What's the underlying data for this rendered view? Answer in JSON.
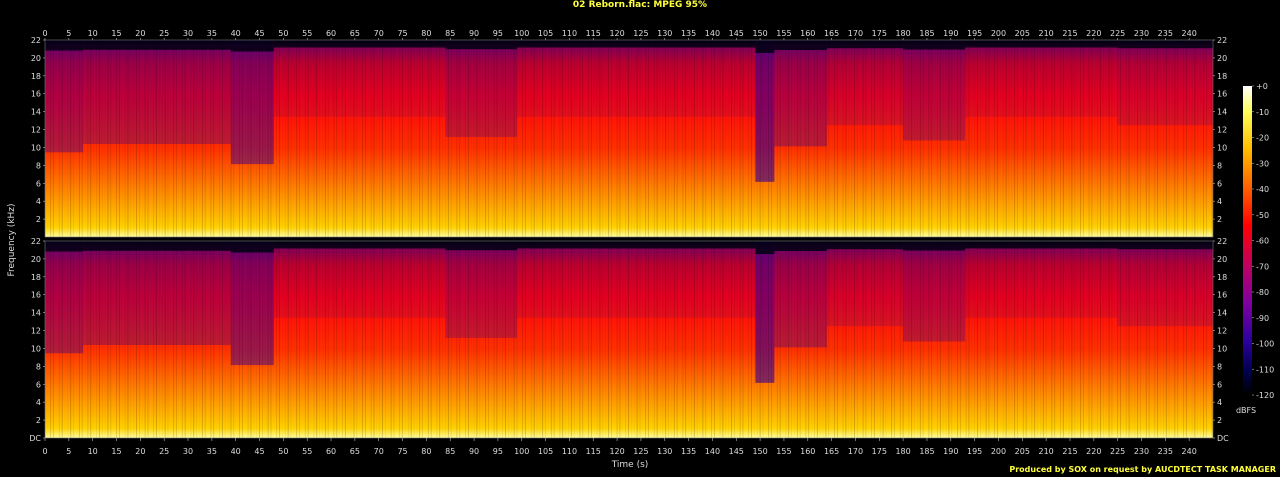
{
  "title": "02 Reborn.flac: MPEG 95%",
  "footer": "Produced by SOX on request by AUCDTECT TASK MANAGER",
  "chart_data": {
    "type": "heatmap",
    "title": "02 Reborn.flac: MPEG 95%",
    "xlabel": "Time (s)",
    "ylabel": "Frequency (kHz)",
    "xlim": [
      0,
      245
    ],
    "ylim": [
      0,
      22
    ],
    "x_ticks": [
      0,
      5,
      10,
      15,
      20,
      25,
      30,
      35,
      40,
      45,
      50,
      55,
      60,
      65,
      70,
      75,
      80,
      85,
      90,
      95,
      100,
      105,
      110,
      115,
      120,
      125,
      130,
      135,
      140,
      145,
      150,
      155,
      160,
      165,
      170,
      175,
      180,
      185,
      190,
      195,
      200,
      205,
      210,
      215,
      220,
      225,
      230,
      235,
      240
    ],
    "y_tick_labels": [
      "DC",
      "2",
      "4",
      "6",
      "8",
      "10",
      "12",
      "14",
      "16",
      "18",
      "20",
      "22"
    ],
    "channels": 2,
    "colorbar": {
      "label": "dBFS",
      "ticks": [
        "+0",
        "-10",
        "-20",
        "-30",
        "-40",
        "-50",
        "-60",
        "-70",
        "-80",
        "-90",
        "-100",
        "-110",
        "-120"
      ],
      "range": [
        -120,
        0
      ]
    },
    "loudness_segments": [
      {
        "t0": 0,
        "t1": 8,
        "level": 0.55
      },
      {
        "t0": 8,
        "t1": 39,
        "level": 0.62
      },
      {
        "t0": 39,
        "t1": 48,
        "level": 0.45
      },
      {
        "t0": 48,
        "t1": 84,
        "level": 0.85
      },
      {
        "t0": 84,
        "t1": 99,
        "level": 0.68
      },
      {
        "t0": 99,
        "t1": 149,
        "level": 0.85
      },
      {
        "t0": 149,
        "t1": 153,
        "level": 0.3
      },
      {
        "t0": 153,
        "t1": 164,
        "level": 0.6
      },
      {
        "t0": 164,
        "t1": 180,
        "level": 0.78
      },
      {
        "t0": 180,
        "t1": 193,
        "level": 0.65
      },
      {
        "t0": 193,
        "t1": 225,
        "level": 0.85
      },
      {
        "t0": 225,
        "t1": 245,
        "level": 0.78
      }
    ]
  }
}
